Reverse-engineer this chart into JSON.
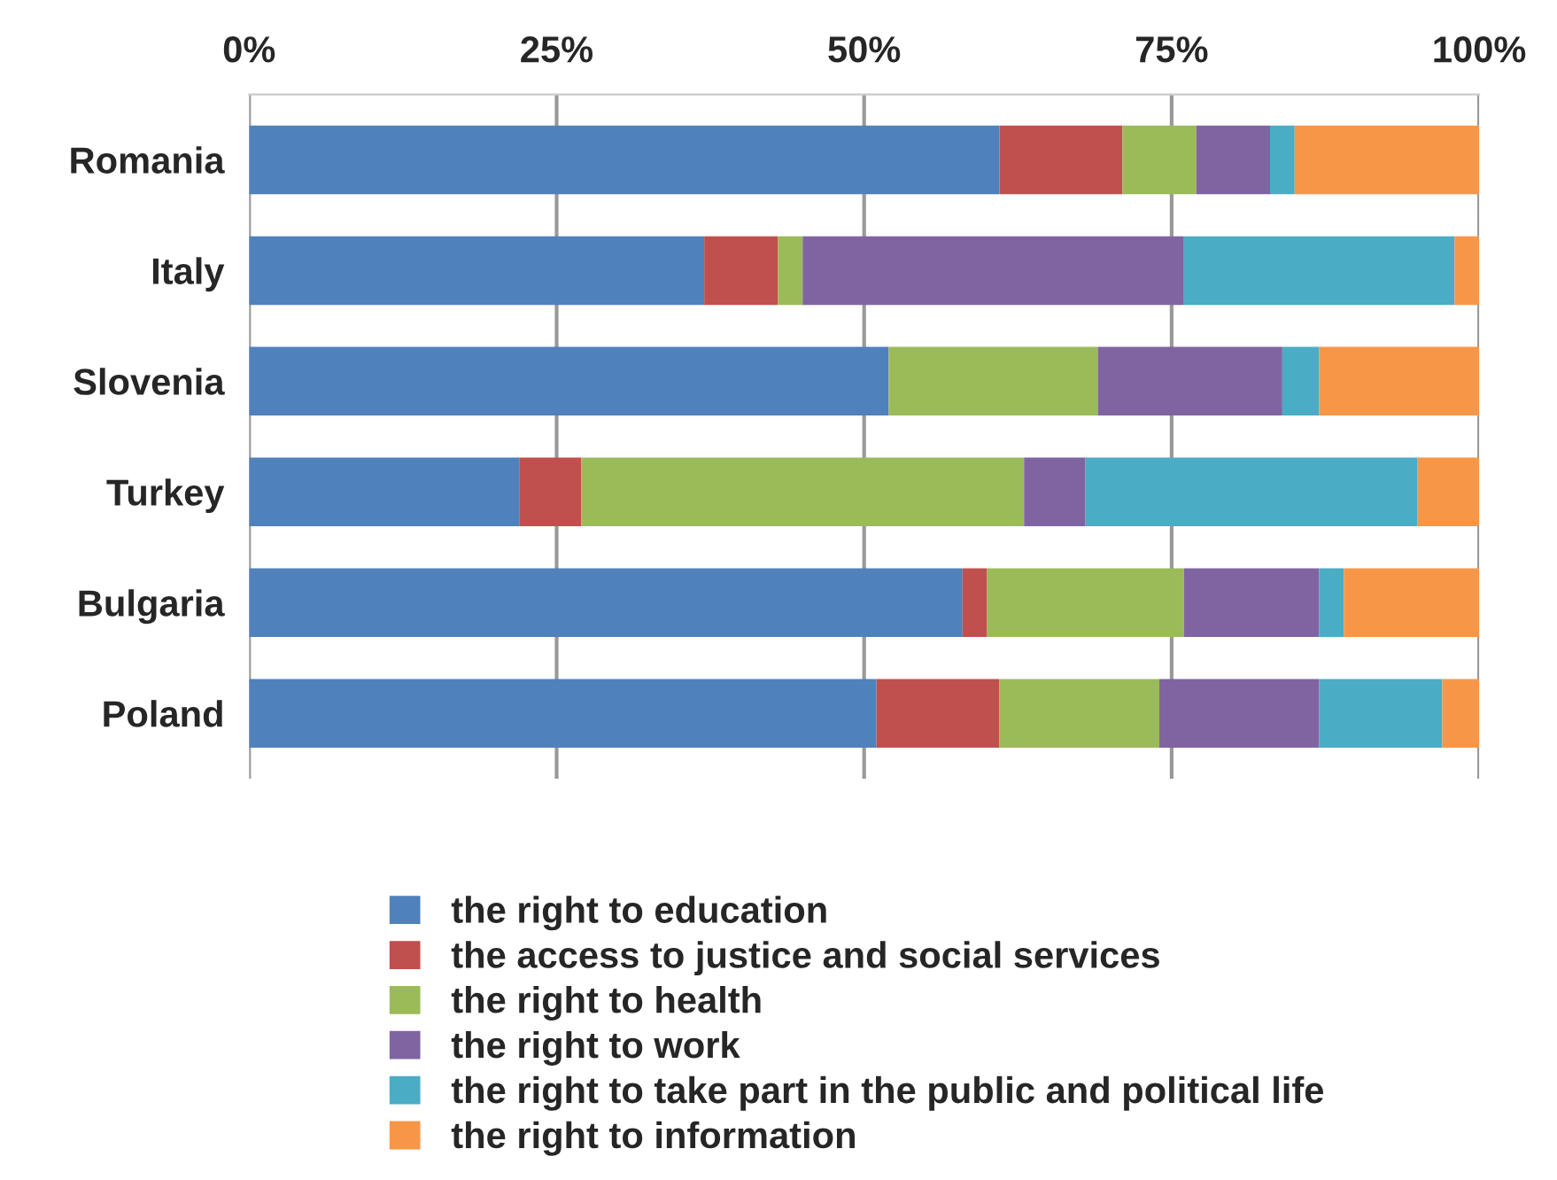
{
  "chart_data": {
    "type": "bar",
    "orientation": "horizontal",
    "stacked": true,
    "categories": [
      "Romania",
      "Italy",
      "Slovenia",
      "Turkey",
      "Bulgaria",
      "Poland"
    ],
    "series": [
      {
        "name": "the right to education",
        "color": "#4f81bd",
        "values": [
          61,
          37,
          52,
          22,
          58,
          51
        ]
      },
      {
        "name": "the access to justice and social services",
        "color": "#c0504d",
        "values": [
          10,
          6,
          0,
          5,
          2,
          10
        ]
      },
      {
        "name": "the right to health",
        "color": "#9bbb59",
        "values": [
          6,
          2,
          17,
          36,
          16,
          13
        ]
      },
      {
        "name": "the right to work",
        "color": "#8064a2",
        "values": [
          6,
          31,
          15,
          5,
          11,
          13
        ]
      },
      {
        "name": "the right to take part in the public and political life",
        "color": "#4bacc6",
        "values": [
          2,
          22,
          3,
          27,
          2,
          10
        ]
      },
      {
        "name": "the right to information",
        "color": "#f79646",
        "values": [
          15,
          2,
          13,
          5,
          11,
          3
        ]
      }
    ],
    "xlim": [
      0,
      100
    ],
    "xticks": [
      {
        "value": 0,
        "label": "0%"
      },
      {
        "value": 25,
        "label": "25%"
      },
      {
        "value": 50,
        "label": "50%"
      },
      {
        "value": 75,
        "label": "75%"
      },
      {
        "value": 100,
        "label": "100%"
      }
    ],
    "grid": "x",
    "legend": "bottom"
  }
}
